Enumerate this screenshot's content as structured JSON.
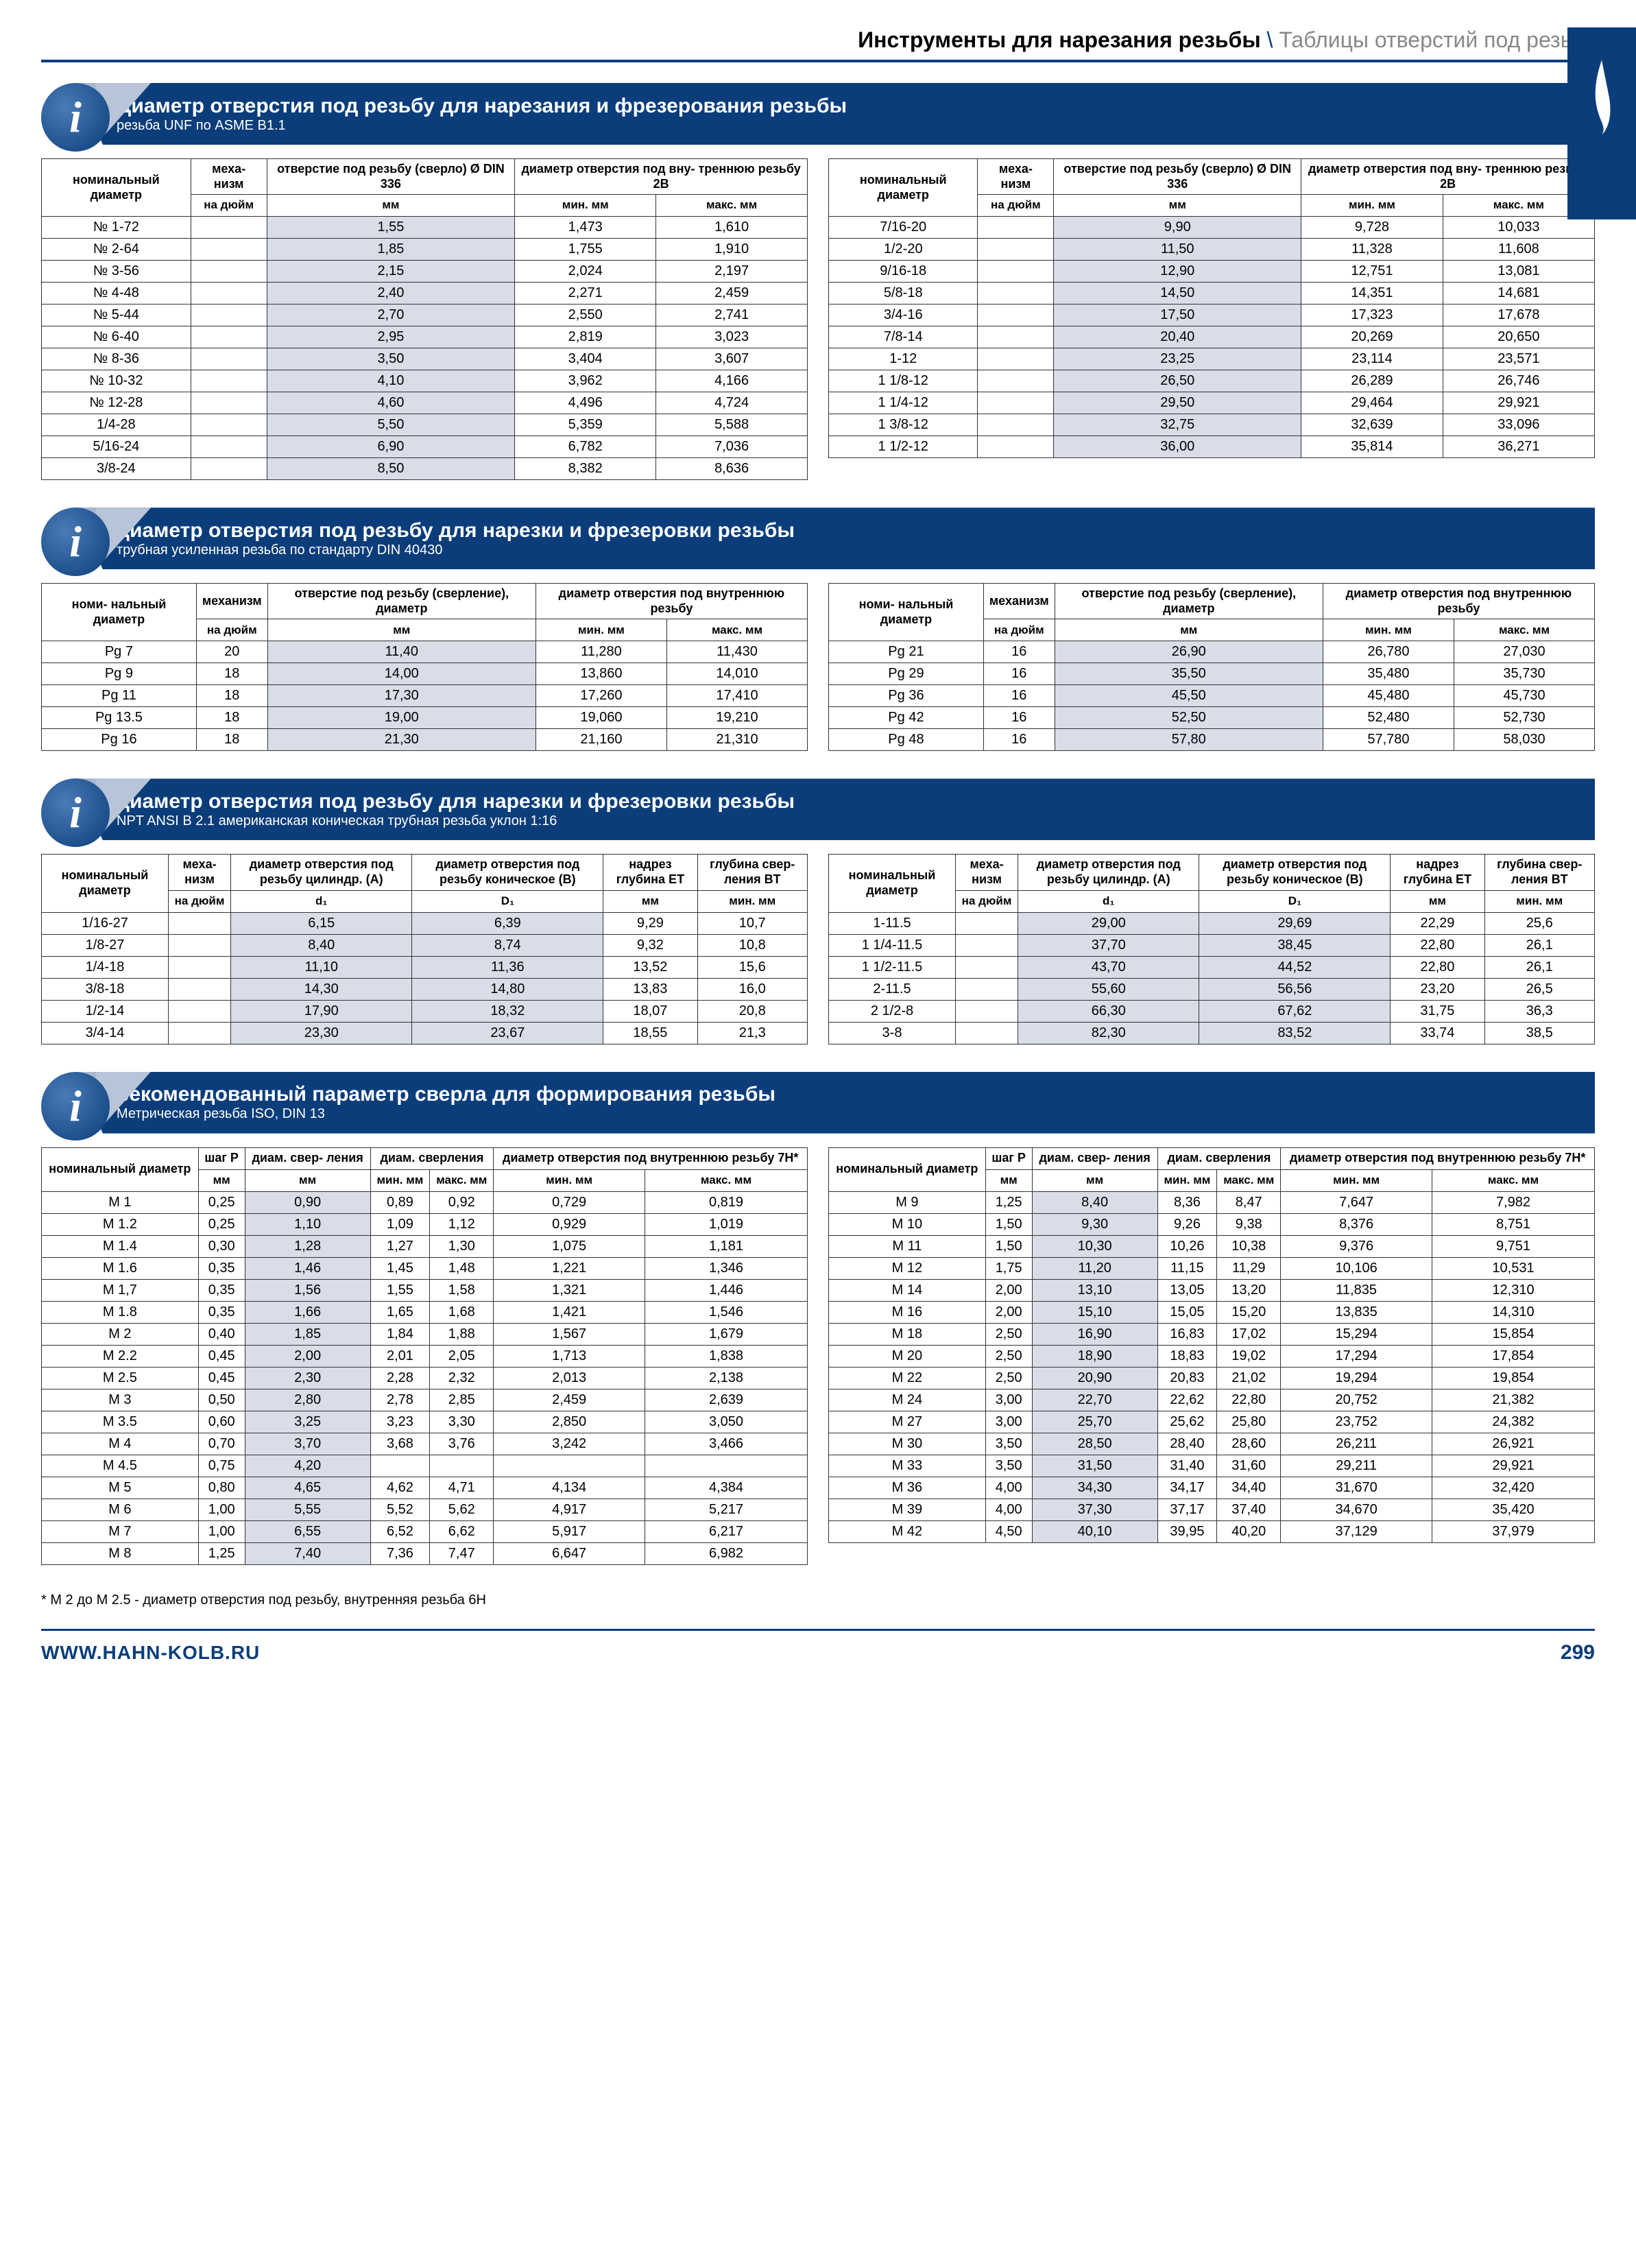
{
  "header": {
    "left": "Инструменты для нарезания резьбы",
    "right": "Таблицы отверстий под резьбу"
  },
  "sections": [
    {
      "title": "Диаметр отверстия под резьбу для нарезания и фрезерования резьбы",
      "subtitle": "резьба UNF по ASME B1.1",
      "col_headers": {
        "c1": "номинальный диаметр",
        "c2": "меха-\nнизм",
        "c2_sub": "на дюйм",
        "c3": "отверстие под резьбу (сверло) Ø DIN 336",
        "c3_sub": "мм",
        "c45": "диаметр отверстия под вну-\nтреннюю резьбу 2B",
        "c4_sub": "мин. мм",
        "c5_sub": "макс. мм"
      },
      "left_rows": [
        [
          "№ 1-72",
          "",
          "1,55",
          "1,473",
          "1,610"
        ],
        [
          "№ 2-64",
          "",
          "1,85",
          "1,755",
          "1,910"
        ],
        [
          "№ 3-56",
          "",
          "2,15",
          "2,024",
          "2,197"
        ],
        [
          "№ 4-48",
          "",
          "2,40",
          "2,271",
          "2,459"
        ],
        [
          "№ 5-44",
          "",
          "2,70",
          "2,550",
          "2,741"
        ],
        [
          "№ 6-40",
          "",
          "2,95",
          "2,819",
          "3,023"
        ],
        [
          "№ 8-36",
          "",
          "3,50",
          "3,404",
          "3,607"
        ],
        [
          "№ 10-32",
          "",
          "4,10",
          "3,962",
          "4,166"
        ],
        [
          "№ 12-28",
          "",
          "4,60",
          "4,496",
          "4,724"
        ],
        [
          "1/4-28",
          "",
          "5,50",
          "5,359",
          "5,588"
        ],
        [
          "5/16-24",
          "",
          "6,90",
          "6,782",
          "7,036"
        ],
        [
          "3/8-24",
          "",
          "8,50",
          "8,382",
          "8,636"
        ]
      ],
      "right_rows": [
        [
          "7/16-20",
          "",
          "9,90",
          "9,728",
          "10,033"
        ],
        [
          "1/2-20",
          "",
          "11,50",
          "11,328",
          "11,608"
        ],
        [
          "9/16-18",
          "",
          "12,90",
          "12,751",
          "13,081"
        ],
        [
          "5/8-18",
          "",
          "14,50",
          "14,351",
          "14,681"
        ],
        [
          "3/4-16",
          "",
          "17,50",
          "17,323",
          "17,678"
        ],
        [
          "7/8-14",
          "",
          "20,40",
          "20,269",
          "20,650"
        ],
        [
          "1-12",
          "",
          "23,25",
          "23,114",
          "23,571"
        ],
        [
          "1 1/8-12",
          "",
          "26,50",
          "26,289",
          "26,746"
        ],
        [
          "1 1/4-12",
          "",
          "29,50",
          "29,464",
          "29,921"
        ],
        [
          "1 3/8-12",
          "",
          "32,75",
          "32,639",
          "33,096"
        ],
        [
          "1 1/2-12",
          "",
          "36,00",
          "35,814",
          "36,271"
        ]
      ]
    },
    {
      "title": "диаметр отверстия под резьбу для нарезки и фрезеровки резьбы",
      "subtitle": "трубная усиленная резьба по стандарту DIN 40430",
      "col_headers": {
        "c1": "номи-\nнальный диаметр",
        "c2": "механизм",
        "c2_sub": "на дюйм",
        "c3": "отверстие под резьбу (сверление), диаметр",
        "c3_sub": "мм",
        "c45": "диаметр отверстия под внутреннюю резьбу",
        "c4_sub": "мин. мм",
        "c5_sub": "макс. мм"
      },
      "left_rows": [
        [
          "Pg 7",
          "20",
          "11,40",
          "11,280",
          "11,430"
        ],
        [
          "Pg 9",
          "18",
          "14,00",
          "13,860",
          "14,010"
        ],
        [
          "Pg 11",
          "18",
          "17,30",
          "17,260",
          "17,410"
        ],
        [
          "Pg 13.5",
          "18",
          "19,00",
          "19,060",
          "19,210"
        ],
        [
          "Pg 16",
          "18",
          "21,30",
          "21,160",
          "21,310"
        ]
      ],
      "right_rows": [
        [
          "Pg 21",
          "16",
          "26,90",
          "26,780",
          "27,030"
        ],
        [
          "Pg 29",
          "16",
          "35,50",
          "35,480",
          "35,730"
        ],
        [
          "Pg 36",
          "16",
          "45,50",
          "45,480",
          "45,730"
        ],
        [
          "Pg 42",
          "16",
          "52,50",
          "52,480",
          "52,730"
        ],
        [
          "Pg 48",
          "16",
          "57,80",
          "57,780",
          "58,030"
        ]
      ]
    },
    {
      "title": "диаметр отверстия под резьбу для нарезки и фрезеровки резьбы",
      "subtitle": "NPT ANSI B 2.1 американская коническая трубная резьба уклон 1:16",
      "col_headers": {
        "c1": "номинальный диаметр",
        "c2": "меха-\nнизм",
        "c2_sub": "на дюйм",
        "c3": "диаметр отверстия под резьбу цилиндр. (A)",
        "c3_sub": "d₁",
        "c4": "диаметр отверстия под резьбу коническое (B)",
        "c4_sub": "D₁",
        "c5": "надрез глубина ET",
        "c5_sub": "мм",
        "c6": "глубина свер-\nления BT",
        "c6_sub": "мин. мм"
      },
      "left_rows": [
        [
          "1/16-27",
          "",
          "6,15",
          "6,39",
          "9,29",
          "10,7"
        ],
        [
          "1/8-27",
          "",
          "8,40",
          "8,74",
          "9,32",
          "10,8"
        ],
        [
          "1/4-18",
          "",
          "11,10",
          "11,36",
          "13,52",
          "15,6"
        ],
        [
          "3/8-18",
          "",
          "14,30",
          "14,80",
          "13,83",
          "16,0"
        ],
        [
          "1/2-14",
          "",
          "17,90",
          "18,32",
          "18,07",
          "20,8"
        ],
        [
          "3/4-14",
          "",
          "23,30",
          "23,67",
          "18,55",
          "21,3"
        ]
      ],
      "right_rows": [
        [
          "1-11.5",
          "",
          "29,00",
          "29,69",
          "22,29",
          "25,6"
        ],
        [
          "1 1/4-11.5",
          "",
          "37,70",
          "38,45",
          "22,80",
          "26,1"
        ],
        [
          "1 1/2-11.5",
          "",
          "43,70",
          "44,52",
          "22,80",
          "26,1"
        ],
        [
          "2-11.5",
          "",
          "55,60",
          "56,56",
          "23,20",
          "26,5"
        ],
        [
          "2 1/2-8",
          "",
          "66,30",
          "67,62",
          "31,75",
          "36,3"
        ],
        [
          "3-8",
          "",
          "82,30",
          "83,52",
          "33,74",
          "38,5"
        ]
      ]
    },
    {
      "title": "рекомендованный параметр сверла для формирования резьбы",
      "subtitle": "Метрическая резьба ISO, DIN 13",
      "col_headers": {
        "c1": "номинальный диаметр",
        "c2": "шаг P",
        "c2_sub": "мм",
        "c3": "диам. свер-\nления",
        "c3_sub": "мм",
        "c45": "диам. сверления",
        "c4_sub": "мин. мм",
        "c5_sub": "макс. мм",
        "c67": "диаметр отверстия под внутреннюю резьбу 7H*",
        "c6_sub": "мин. мм",
        "c7_sub": "макс. мм"
      },
      "left_rows": [
        [
          "M 1",
          "0,25",
          "0,90",
          "0,89",
          "0,92",
          "0,729",
          "0,819"
        ],
        [
          "M 1.2",
          "0,25",
          "1,10",
          "1,09",
          "1,12",
          "0,929",
          "1,019"
        ],
        [
          "M 1.4",
          "0,30",
          "1,28",
          "1,27",
          "1,30",
          "1,075",
          "1,181"
        ],
        [
          "M 1.6",
          "0,35",
          "1,46",
          "1,45",
          "1,48",
          "1,221",
          "1,346"
        ],
        [
          "M 1,7",
          "0,35",
          "1,56",
          "1,55",
          "1,58",
          "1,321",
          "1,446"
        ],
        [
          "M 1.8",
          "0,35",
          "1,66",
          "1,65",
          "1,68",
          "1,421",
          "1,546"
        ],
        [
          "M 2",
          "0,40",
          "1,85",
          "1,84",
          "1,88",
          "1,567",
          "1,679"
        ],
        [
          "M 2.2",
          "0,45",
          "2,00",
          "2,01",
          "2,05",
          "1,713",
          "1,838"
        ],
        [
          "M 2.5",
          "0,45",
          "2,30",
          "2,28",
          "2,32",
          "2,013",
          "2,138"
        ],
        [
          "M 3",
          "0,50",
          "2,80",
          "2,78",
          "2,85",
          "2,459",
          "2,639"
        ],
        [
          "M 3.5",
          "0,60",
          "3,25",
          "3,23",
          "3,30",
          "2,850",
          "3,050"
        ],
        [
          "M 4",
          "0,70",
          "3,70",
          "3,68",
          "3,76",
          "3,242",
          "3,466"
        ],
        [
          "M 4.5",
          "0,75",
          "4,20",
          "",
          "",
          "",
          ""
        ],
        [
          "M 5",
          "0,80",
          "4,65",
          "4,62",
          "4,71",
          "4,134",
          "4,384"
        ],
        [
          "M 6",
          "1,00",
          "5,55",
          "5,52",
          "5,62",
          "4,917",
          "5,217"
        ],
        [
          "M 7",
          "1,00",
          "6,55",
          "6,52",
          "6,62",
          "5,917",
          "6,217"
        ],
        [
          "M 8",
          "1,25",
          "7,40",
          "7,36",
          "7,47",
          "6,647",
          "6,982"
        ]
      ],
      "right_rows": [
        [
          "M 9",
          "1,25",
          "8,40",
          "8,36",
          "8,47",
          "7,647",
          "7,982"
        ],
        [
          "M 10",
          "1,50",
          "9,30",
          "9,26",
          "9,38",
          "8,376",
          "8,751"
        ],
        [
          "M 11",
          "1,50",
          "10,30",
          "10,26",
          "10,38",
          "9,376",
          "9,751"
        ],
        [
          "M 12",
          "1,75",
          "11,20",
          "11,15",
          "11,29",
          "10,106",
          "10,531"
        ],
        [
          "M 14",
          "2,00",
          "13,10",
          "13,05",
          "13,20",
          "11,835",
          "12,310"
        ],
        [
          "M 16",
          "2,00",
          "15,10",
          "15,05",
          "15,20",
          "13,835",
          "14,310"
        ],
        [
          "M 18",
          "2,50",
          "16,90",
          "16,83",
          "17,02",
          "15,294",
          "15,854"
        ],
        [
          "M 20",
          "2,50",
          "18,90",
          "18,83",
          "19,02",
          "17,294",
          "17,854"
        ],
        [
          "M 22",
          "2,50",
          "20,90",
          "20,83",
          "21,02",
          "19,294",
          "19,854"
        ],
        [
          "M 24",
          "3,00",
          "22,70",
          "22,62",
          "22,80",
          "20,752",
          "21,382"
        ],
        [
          "M 27",
          "3,00",
          "25,70",
          "25,62",
          "25,80",
          "23,752",
          "24,382"
        ],
        [
          "M 30",
          "3,50",
          "28,50",
          "28,40",
          "28,60",
          "26,211",
          "26,921"
        ],
        [
          "M 33",
          "3,50",
          "31,50",
          "31,40",
          "31,60",
          "29,211",
          "29,921"
        ],
        [
          "M 36",
          "4,00",
          "34,30",
          "34,17",
          "34,40",
          "31,670",
          "32,420"
        ],
        [
          "M 39",
          "4,00",
          "37,30",
          "37,17",
          "37,40",
          "34,670",
          "35,420"
        ],
        [
          "M 42",
          "4,50",
          "40,10",
          "39,95",
          "40,20",
          "37,129",
          "37,979"
        ]
      ]
    }
  ],
  "footnote": "* M 2 до M 2.5 - диаметр отверстия под резьбу, внутренняя резьба 6H",
  "footer": {
    "url": "WWW.HAHN-KOLB.RU",
    "page": "299"
  }
}
